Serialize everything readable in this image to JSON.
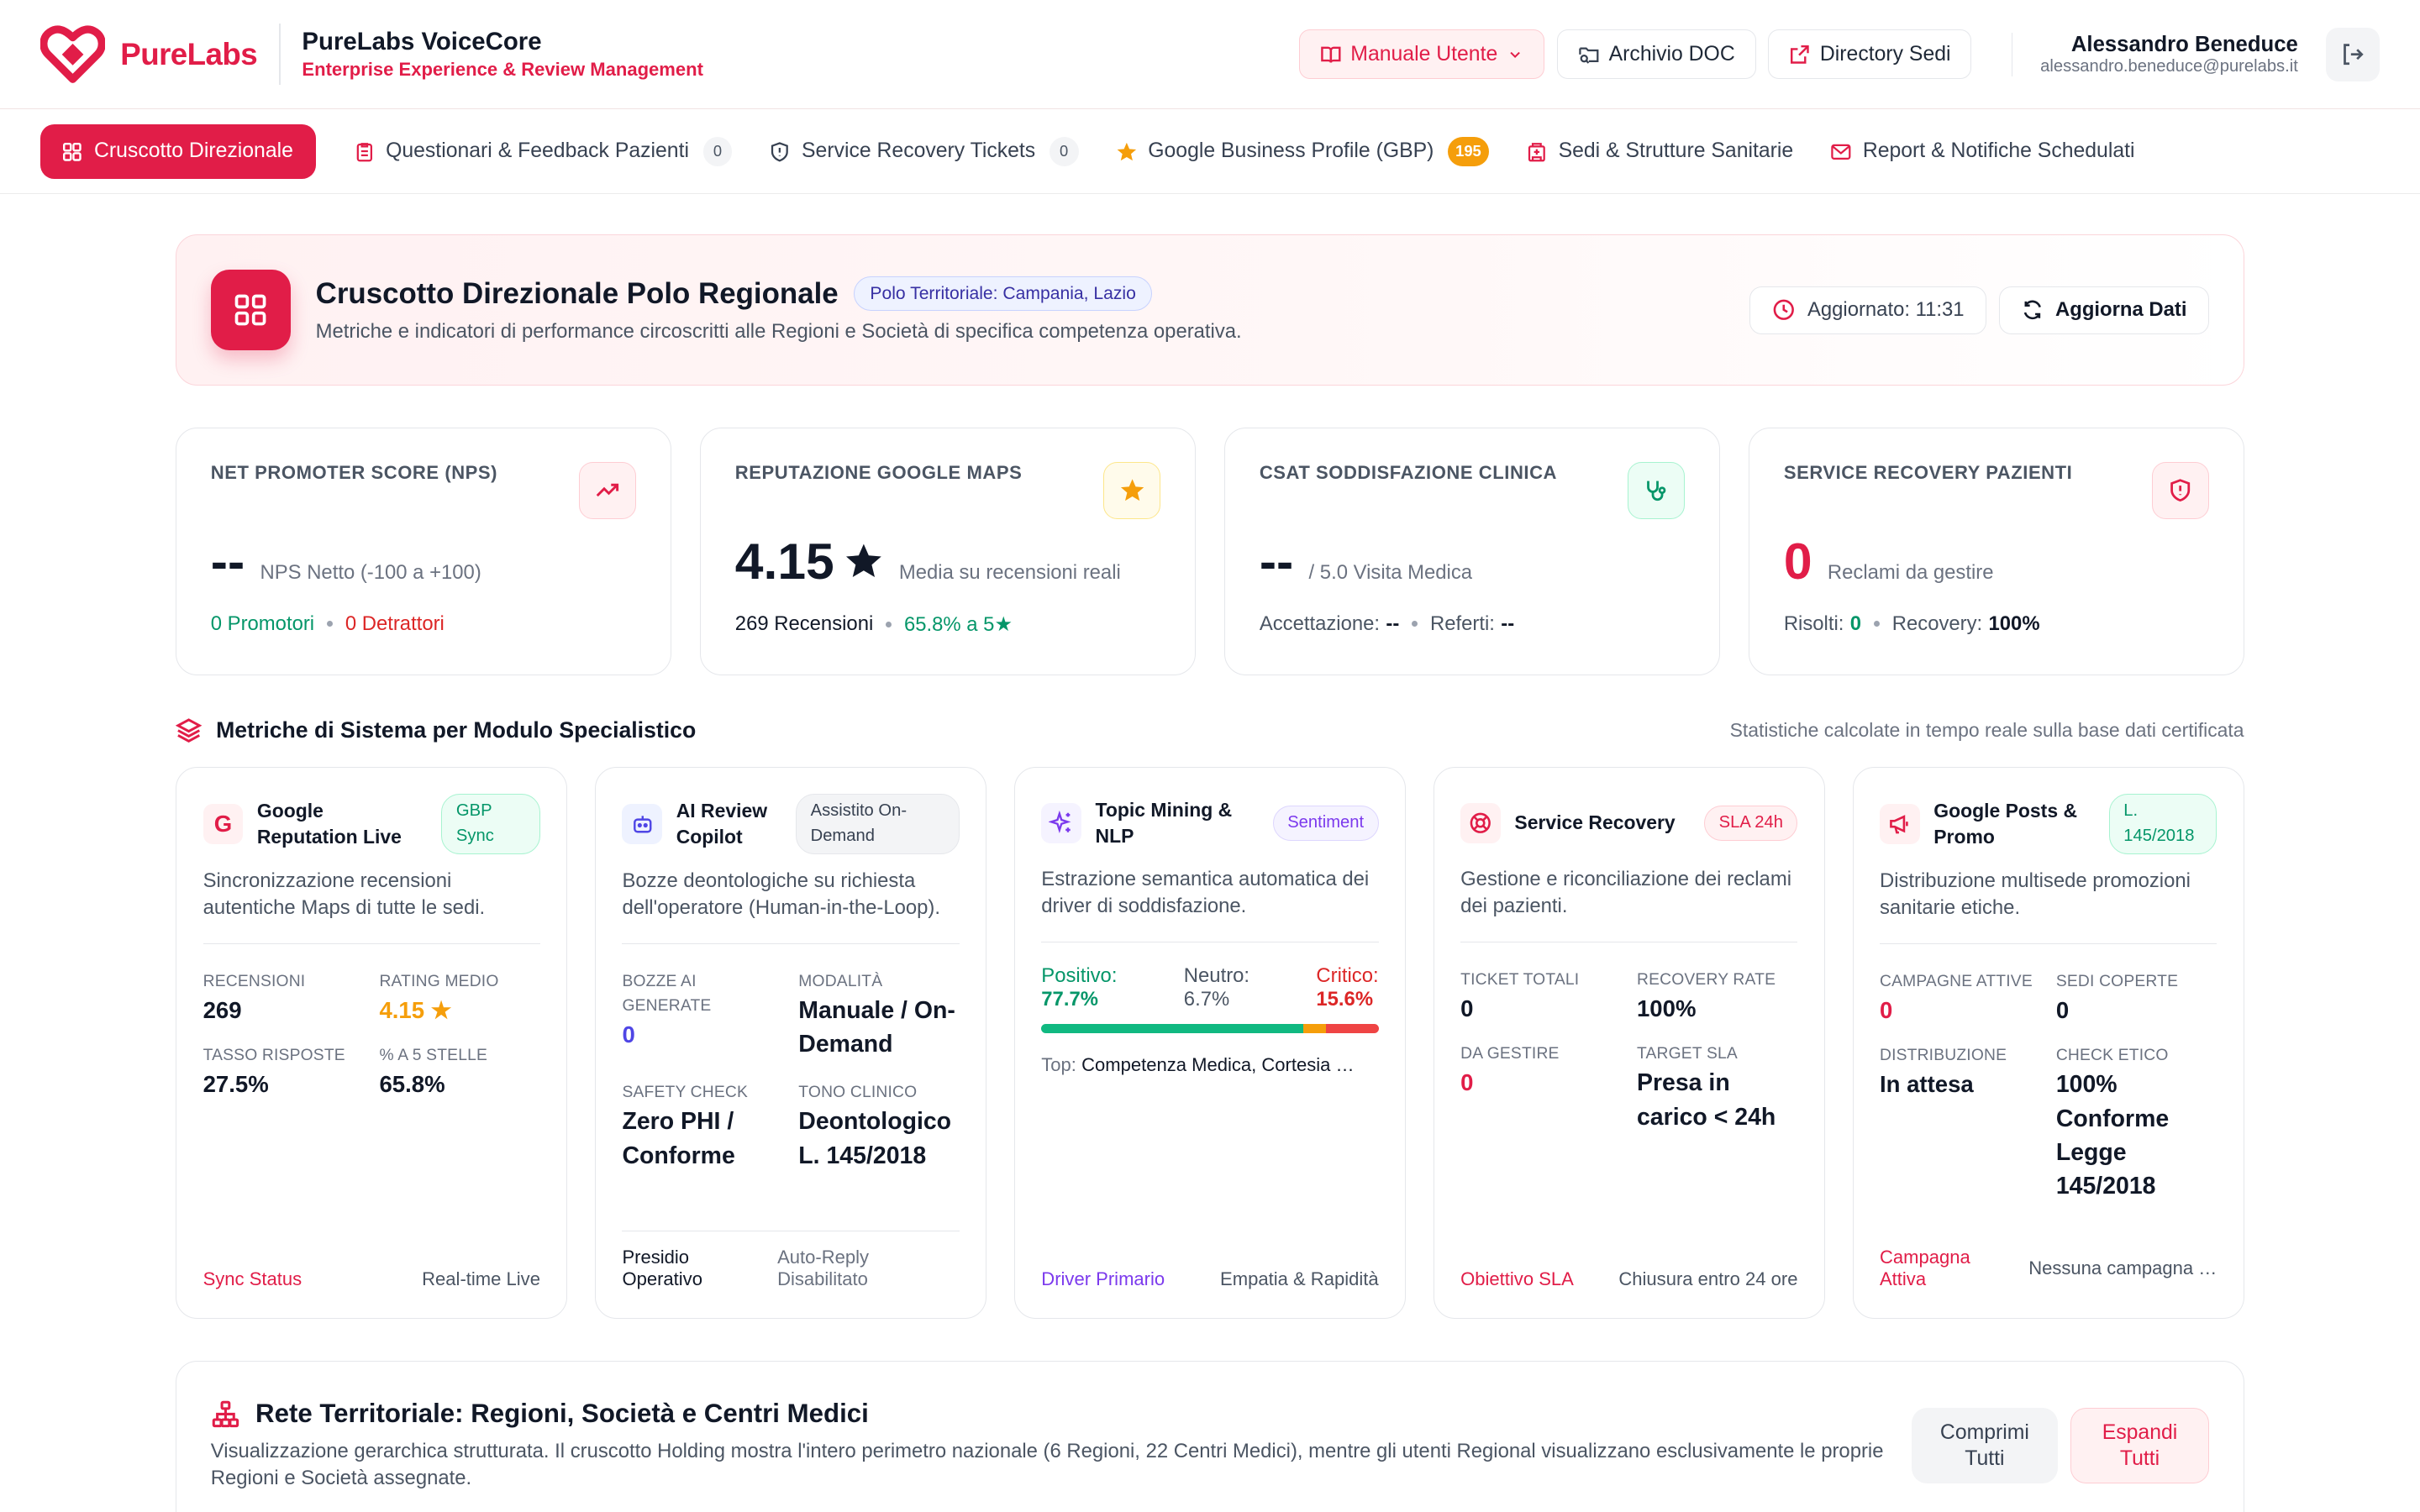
{
  "brand": {
    "name": "PureLabs",
    "app_title": "PureLabs VoiceCore",
    "app_subtitle": "Enterprise Experience & Review Management",
    "accent": "#e11d48"
  },
  "header": {
    "buttons": [
      {
        "label": "Manuale Utente",
        "icon": "book-icon"
      },
      {
        "label": "Archivio DOC",
        "icon": "folder-search-icon"
      },
      {
        "label": "Directory Sedi",
        "icon": "external-link-icon"
      }
    ],
    "user": {
      "name": "Alessandro Beneduce",
      "email": "alessandro.beneduce@purelabs.it"
    }
  },
  "nav": [
    {
      "label": "Cruscotto Direzionale",
      "active": true
    },
    {
      "label": "Questionari & Feedback Pazienti",
      "badge": "0"
    },
    {
      "label": "Service Recovery Tickets",
      "badge": "0"
    },
    {
      "label": "Google Business Profile (GBP)",
      "badge": "195"
    },
    {
      "label": "Sedi & Strutture Sanitarie"
    },
    {
      "label": "Report & Notifiche Schedulati"
    }
  ],
  "hero": {
    "title": "Cruscotto Direzionale Polo Regionale",
    "badge": "Polo Territoriale: Campania, Lazio",
    "description": "Metriche e indicatori di performance circoscritti alle Regioni e Società di specifica competenza operativa.",
    "updated": "Aggiornato: 11:31",
    "refresh": "Aggiorna Dati"
  },
  "kpis": {
    "nps": {
      "label": "NET PROMOTER SCORE (NPS)",
      "value": "--",
      "unit": "NPS Netto (-100 a +100)",
      "promoters": "0 Promotori",
      "detractors": "0 Detrattori"
    },
    "google": {
      "label": "REPUTAZIONE GOOGLE MAPS",
      "value": "4.15",
      "unit": "Media su recensioni reali",
      "reviews": "269 Recensioni",
      "five_star": "65.8% a 5★"
    },
    "csat": {
      "label": "CSAT SODDISFAZIONE CLINICA",
      "value": "--",
      "unit": "/ 5.0 Visita Medica",
      "acc_label": "Accettazione:",
      "acc_val": "--",
      "ref_label": "Referti:",
      "ref_val": "--"
    },
    "recovery": {
      "label": "SERVICE RECOVERY PAZIENTI",
      "value": "0",
      "unit": "Reclami da gestire",
      "solved_label": "Risolti:",
      "solved_val": "0",
      "rec_label": "Recovery:",
      "rec_val": "100%"
    }
  },
  "section": {
    "title": "Metriche di Sistema per Modulo Specialistico",
    "note": "Statistiche calcolate in tempo reale sulla base dati certificata"
  },
  "modules": {
    "google": {
      "title": "Google Reputation Live",
      "tag": "GBP Sync",
      "desc": "Sincronizzazione recensioni autentiche Maps di tutte le sedi.",
      "m1_label": "RECENSIONI",
      "m1_val": "269",
      "m2_label": "RATING MEDIO",
      "m2_val": "4.15 ★",
      "m3_label": "TASSO RISPOSTE",
      "m3_val": "27.5%",
      "m4_label": "% A 5 STELLE",
      "m4_val": "65.8%",
      "foot_l": "Sync Status",
      "foot_r": "Real-time Live"
    },
    "ai": {
      "title": "AI Review Copilot",
      "tag": "Assistito On-Demand",
      "desc": "Bozze deontologiche su richiesta dell'operatore (Human-in-the-Loop).",
      "m1_label": "BOZZE AI GENERATE",
      "m1_val": "0",
      "m2_label": "MODALITÀ",
      "m2_val": "Manuale / On-Demand",
      "m3_label": "SAFETY CHECK",
      "m3_val": "Zero PHI / Conforme",
      "m4_label": "TONO CLINICO",
      "m4_val": "Deontologico L. 145/2018",
      "foot_l": "Presidio Operativo",
      "foot_r": "Auto-Reply Disabilitato"
    },
    "topic": {
      "title": "Topic Mining & NLP",
      "tag": "Sentiment",
      "desc": "Estrazione semantica automatica dei driver di soddisfazione.",
      "pos_label": "Positivo:",
      "pos_val": "77.7%",
      "neu_label": "Neutro:",
      "neu_val": "6.7%",
      "crit_label": "Critico:",
      "crit_val": "15.6%",
      "sentiment": {
        "positive": 77.7,
        "neutral": 6.7,
        "critical": 15.6
      },
      "top_label": "Top:",
      "top_val": "Competenza Medica, Cortesia …",
      "foot_l": "Driver Primario",
      "foot_r": "Empatia & Rapidità"
    },
    "recovery": {
      "title": "Service Recovery",
      "tag": "SLA 24h",
      "desc": "Gestione e riconciliazione dei reclami dei pazienti.",
      "m1_label": "TICKET TOTALI",
      "m1_val": "0",
      "m2_label": "RECOVERY RATE",
      "m2_val": "100%",
      "m3_label": "DA GESTIRE",
      "m3_val": "0",
      "m4_label": "TARGET SLA",
      "m4_val": "Presa in carico < 24h",
      "foot_l": "Obiettivo SLA",
      "foot_r": "Chiusura entro 24 ore"
    },
    "posts": {
      "title": "Google Posts & Promo",
      "tag": "L. 145/2018",
      "desc": "Distribuzione multisede promozioni sanitarie etiche.",
      "m1_label": "CAMPAGNE ATTIVE",
      "m1_val": "0",
      "m2_label": "SEDI COPERTE",
      "m2_val": "0",
      "m3_label": "DISTRIBUZIONE",
      "m3_val": "In attesa",
      "m4_label": "CHECK ETICO",
      "m4_val": "100% Conforme Legge 145/2018",
      "foot_l": "Campagna Attiva",
      "foot_r": "Nessuna campagna …"
    }
  },
  "rete": {
    "title": "Rete Territoriale: Regioni, Società e Centri Medici",
    "desc": "Visualizzazione gerarchica strutturata. Il cruscotto Holding mostra l'intero perimetro nazionale (6 Regioni, 22 Centri Medici), mentre gli utenti Regional visualizzano esclusivamente le proprie Regioni e Società assegnate.",
    "collapse": "Comprimi Tutti",
    "expand": "Espandi Tutti"
  }
}
